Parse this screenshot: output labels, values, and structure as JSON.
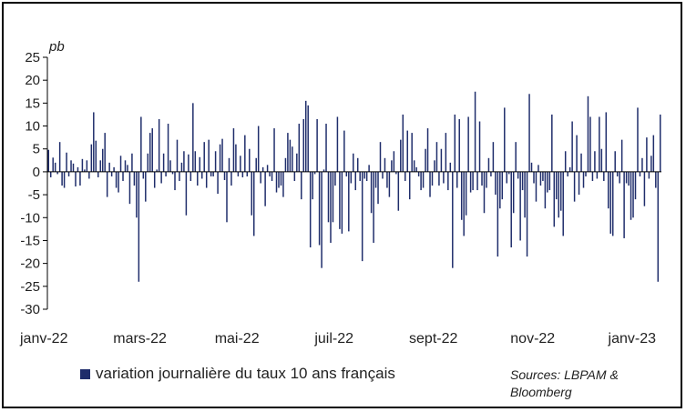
{
  "colors": {
    "bar": "#1f2d6b",
    "axis": "#000000",
    "text": "#222222"
  },
  "legend": {
    "label": "variation journalière du taux 10 ans français",
    "icon": "square-swatch-icon"
  },
  "source": {
    "line1": "Sources: LBPAM &",
    "line2": "Bloomberg"
  },
  "chart_data": {
    "type": "bar",
    "title": "",
    "ylabel": "pb",
    "xlabel": "",
    "ylim": [
      -30,
      25
    ],
    "yticks": [
      25,
      20,
      15,
      10,
      5,
      0,
      -5,
      -10,
      -15,
      -20,
      -25,
      -30
    ],
    "xlabels": [
      {
        "label": "janv-22",
        "index": 0
      },
      {
        "label": "mars-22",
        "index": 41
      },
      {
        "label": "mai-22",
        "index": 84
      },
      {
        "label": "juil-22",
        "index": 127
      },
      {
        "label": "sept-22",
        "index": 171
      },
      {
        "label": "nov-22",
        "index": 215
      },
      {
        "label": "janv-23",
        "index": 259
      }
    ],
    "series": [
      {
        "name": "variation journalière du taux 10 ans français",
        "values": [
          4.8,
          -1.2,
          3.1,
          2.0,
          -0.5,
          6.5,
          -3.0,
          -3.5,
          4.2,
          -1.0,
          2.5,
          1.8,
          -3.2,
          1.0,
          -3.0,
          2.8,
          0.5,
          2.5,
          -1.5,
          6.0,
          13.0,
          6.8,
          -1.2,
          2.5,
          5.0,
          8.5,
          -5.5,
          2.0,
          -1.0,
          1.0,
          -3.5,
          -4.5,
          3.5,
          -2.0,
          2.5,
          1.5,
          -7.0,
          4.0,
          -3.0,
          -10.0,
          -24.0,
          12.0,
          -1.5,
          -6.5,
          4.0,
          8.5,
          9.5,
          -3.5,
          0.5,
          11.5,
          -2.5,
          4.0,
          -1.0,
          10.5,
          2.5,
          -0.5,
          -4.0,
          7.0,
          -2.0,
          2.0,
          4.5,
          -9.5,
          3.8,
          -2.0,
          15.0,
          4.5,
          -3.0,
          3.2,
          -1.5,
          6.5,
          -3.5,
          7.0,
          -1.0,
          -1.0,
          4.5,
          -4.8,
          6.0,
          7.2,
          -1.8,
          -11.0,
          3.0,
          -3.0,
          9.5,
          6.0,
          -1.0,
          3.5,
          -1.2,
          8.0,
          -1.0,
          5.0,
          -9.5,
          -14.0,
          3.0,
          10.0,
          -2.5,
          1.0,
          -7.5,
          1.5,
          -1.0,
          -2.0,
          9.5,
          -4.5,
          -3.5,
          -3.0,
          -5.5,
          3.0,
          8.5,
          7.0,
          5.5,
          -2.0,
          4.0,
          10.5,
          -6.0,
          11.5,
          15.5,
          14.5,
          -16.5,
          -6.0,
          -0.5,
          11.5,
          -16.0,
          -21.0,
          0.5,
          10.5,
          -11.0,
          -15.5,
          -11.0,
          -3.0,
          12.0,
          -12.5,
          -13.5,
          9.0,
          -1.0,
          -13.0,
          -2.5,
          4.0,
          -4.0,
          3.0,
          -2.0,
          -19.5,
          -1.5,
          -2.0,
          1.5,
          -9.0,
          -15.5,
          -3.5,
          -7.0,
          6.5,
          -1.5,
          3.0,
          -3.5,
          -5.5,
          2.5,
          4.5,
          -0.5,
          -8.5,
          7.0,
          12.5,
          -2.0,
          9.0,
          -6.0,
          8.5,
          2.5,
          1.0,
          -1.0,
          -4.0,
          -3.5,
          5.0,
          9.5,
          -5.5,
          -3.0,
          2.5,
          6.5,
          -3.0,
          5.0,
          -2.5,
          8.5,
          -4.0,
          2.0,
          -21.0,
          12.5,
          -3.5,
          11.5,
          -10.5,
          -14.0,
          -9.5,
          12.0,
          -4.5,
          -4.0,
          17.5,
          -4.0,
          11.0,
          -3.0,
          -9.0,
          -3.5,
          3.0,
          -1.0,
          6.5,
          -5.0,
          -18.5,
          -8.0,
          -6.0,
          14.0,
          -2.5,
          -0.5,
          -16.5,
          -9.0,
          6.5,
          -1.5,
          -15.0,
          -4.0,
          -10.0,
          -18.5,
          17.0,
          2.0,
          -2.5,
          -6.5,
          1.5,
          -3.0,
          -2.0,
          -8.0,
          -4.5,
          -4.0,
          12.5,
          -12.0,
          -6.0,
          -10.0,
          -8.5,
          -14.0,
          4.5,
          -1.0,
          1.0,
          11.0,
          -6.5,
          8.0,
          -5.0,
          4.0,
          -3.5,
          -1.0,
          16.5,
          12.0,
          -2.0,
          4.5,
          -1.5,
          12.0,
          5.0,
          -2.0,
          13.0,
          -8.0,
          -13.5,
          -14.0,
          4.5,
          -1.0,
          -2.5,
          7.0,
          -14.5,
          -2.5,
          -3.0,
          -10.5,
          -10.0,
          -6.0,
          14.0,
          -1.0,
          3.0,
          -7.5,
          7.5,
          -1.5,
          3.5,
          8.0,
          -3.5,
          -24.0,
          12.5
        ]
      }
    ]
  }
}
